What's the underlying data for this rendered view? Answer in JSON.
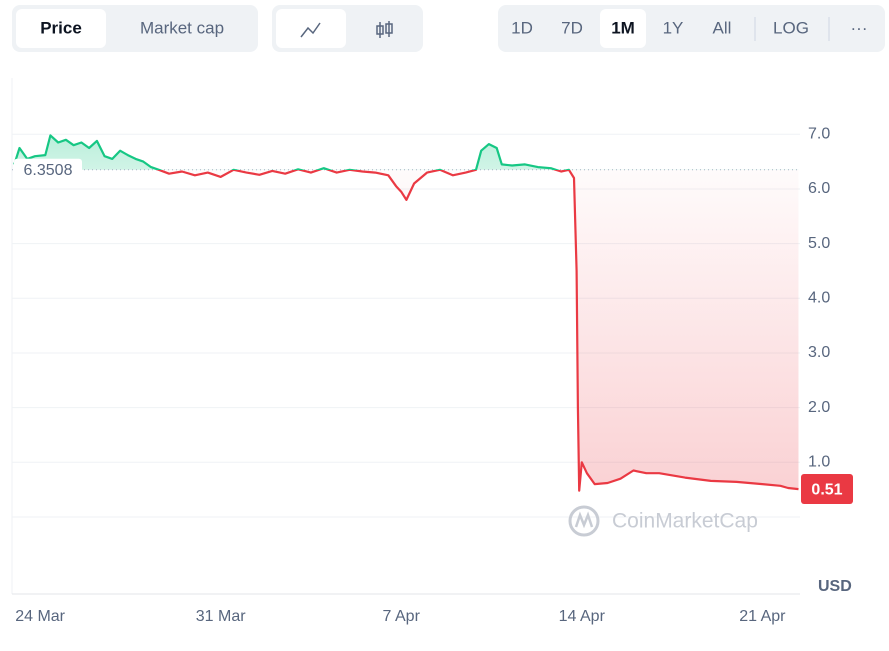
{
  "toolbar": {
    "view_tabs": [
      "Price",
      "Market cap"
    ],
    "active_view": 0,
    "timeframes": [
      "1D",
      "7D",
      "1M",
      "1Y",
      "All"
    ],
    "active_timeframe": 2,
    "scale_toggle": "LOG",
    "more": "···"
  },
  "chart_data": {
    "type": "line",
    "color_up": "#16c784",
    "color_down": "#ea3943",
    "reference": 6.3508,
    "x": [
      -1.0,
      -0.8,
      -0.5,
      -0.2,
      0.2,
      0.4,
      0.7,
      1.0,
      1.3,
      1.6,
      1.9,
      2.2,
      2.5,
      2.8,
      3.1,
      3.4,
      3.7,
      4.0,
      4.3,
      4.6,
      5.0,
      5.5,
      6.0,
      6.5,
      7.0,
      7.5,
      8.0,
      8.5,
      9.0,
      9.5,
      10.0,
      10.5,
      11.0,
      11.5,
      12.0,
      12.5,
      13.0,
      13.5,
      13.8,
      14.0,
      14.2,
      14.5,
      15.0,
      15.5,
      16.0,
      16.5,
      16.9,
      17.1,
      17.4,
      17.7,
      17.9,
      18.3,
      18.8,
      19.3,
      19.8,
      20.2,
      20.5,
      20.7,
      20.8,
      20.85,
      20.9,
      21.0,
      21.2,
      21.5,
      22.0,
      22.5,
      23.0,
      23.5,
      24.0,
      25.0,
      26.0,
      27.0,
      28.0,
      28.7,
      29.0,
      29.4
    ],
    "values": [
      6.45,
      6.75,
      6.55,
      6.6,
      6.62,
      6.98,
      6.85,
      6.9,
      6.8,
      6.85,
      6.75,
      6.88,
      6.6,
      6.55,
      6.7,
      6.62,
      6.55,
      6.5,
      6.4,
      6.35,
      6.28,
      6.32,
      6.25,
      6.3,
      6.22,
      6.35,
      6.3,
      6.26,
      6.33,
      6.28,
      6.36,
      6.3,
      6.38,
      6.3,
      6.35,
      6.32,
      6.3,
      6.25,
      6.05,
      5.95,
      5.8,
      6.1,
      6.3,
      6.35,
      6.25,
      6.3,
      6.35,
      6.7,
      6.82,
      6.75,
      6.45,
      6.43,
      6.45,
      6.4,
      6.38,
      6.32,
      6.35,
      6.2,
      4.5,
      2.0,
      0.48,
      1.0,
      0.8,
      0.6,
      0.62,
      0.7,
      0.85,
      0.8,
      0.8,
      0.72,
      0.66,
      0.64,
      0.6,
      0.57,
      0.53,
      0.51
    ],
    "xlim": [
      -1.09,
      29.46
    ],
    "xticks": [
      {
        "value": 0,
        "label": "24 Mar"
      },
      {
        "value": 7,
        "label": "31 Mar"
      },
      {
        "value": 14,
        "label": "7 Apr"
      },
      {
        "value": 21,
        "label": "14 Apr"
      },
      {
        "value": 28,
        "label": "21 Apr"
      }
    ],
    "ylim": [
      -1.41,
      8.03
    ],
    "yticks": [
      {
        "value": 1,
        "label": "1.0"
      },
      {
        "value": 2,
        "label": "2.0"
      },
      {
        "value": 3,
        "label": "3.0"
      },
      {
        "value": 4,
        "label": "4.0"
      },
      {
        "value": 5,
        "label": "5.0"
      },
      {
        "value": 6,
        "label": "6.0"
      },
      {
        "value": 7,
        "label": "7.0"
      }
    ],
    "grid": true,
    "currency": "USD",
    "watermark": "CoinMarketCap"
  }
}
